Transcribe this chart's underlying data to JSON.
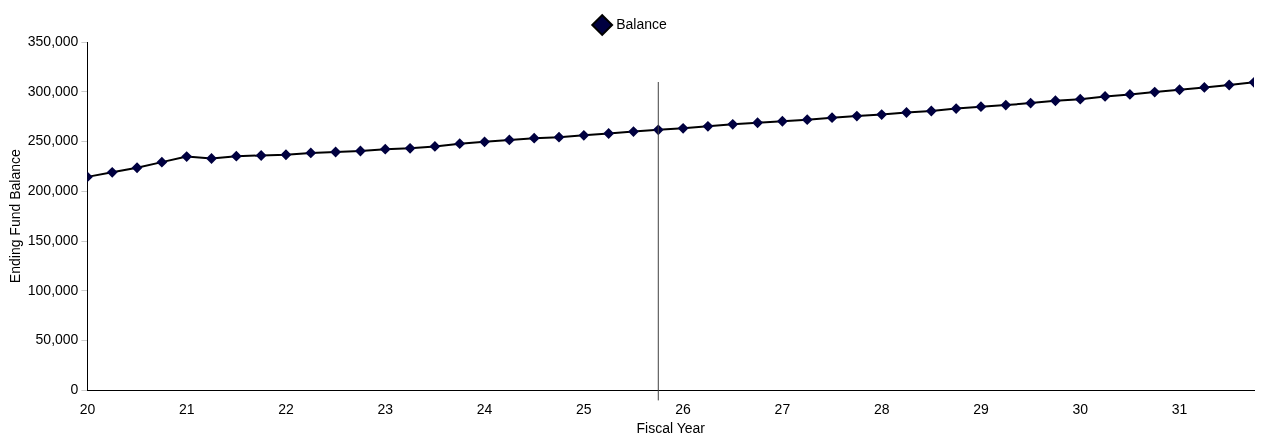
{
  "chart_data": {
    "type": "line",
    "xlabel": "Fiscal Year",
    "ylabel": "Ending Fund Balance",
    "x": [
      20,
      20.25,
      20.5,
      20.75,
      21,
      21.25,
      21.5,
      21.75,
      22,
      22.25,
      22.5,
      22.75,
      23,
      23.25,
      23.5,
      23.75,
      24,
      24.25,
      24.5,
      24.75,
      25,
      25.25,
      25.5,
      25.75,
      26,
      26.25,
      26.5,
      26.75,
      27,
      27.25,
      27.5,
      27.75,
      28,
      28.25,
      28.5,
      28.75,
      29,
      29.25,
      29.5,
      29.75,
      30,
      30.25,
      30.5,
      30.75,
      31,
      31.25,
      31.5,
      31.75
    ],
    "series": [
      {
        "name": "Balance",
        "color": "#000040",
        "values": [
          214500,
          219100,
          223700,
          229300,
          234900,
          233000,
          235300,
          236000,
          236700,
          238600,
          239500,
          240500,
          242300,
          243200,
          245100,
          247900,
          249700,
          251600,
          253400,
          254400,
          256200,
          258100,
          260000,
          261800,
          263300,
          265300,
          267300,
          268900,
          270400,
          272000,
          274000,
          275600,
          277100,
          279200,
          280700,
          283100,
          285000,
          286600,
          288600,
          291000,
          292600,
          295300,
          297300,
          299700,
          302000,
          304400,
          306800,
          309500
        ]
      }
    ],
    "xlim": [
      20,
      31.75
    ],
    "xticks": [
      20,
      21,
      22,
      23,
      24,
      25,
      26,
      27,
      28,
      29,
      30,
      31
    ],
    "ylim": [
      0,
      350000
    ],
    "yticks": [
      0,
      {
        "value": 50000,
        "label": "50,000"
      },
      {
        "value": 100000,
        "label": "100,000"
      },
      {
        "value": 150000,
        "label": "150,000"
      },
      {
        "value": 200000,
        "label": "200,000"
      },
      {
        "value": 250000,
        "label": "250,000"
      },
      {
        "value": 300000,
        "label": "300,000"
      },
      {
        "value": 350000,
        "label": "350,000"
      }
    ],
    "ref_lines": [
      {
        "axis": "x",
        "value": 25.75,
        "color": "#404040"
      }
    ],
    "grid": false,
    "legend": "top",
    "marker": "diamond",
    "line_style": "solid"
  }
}
